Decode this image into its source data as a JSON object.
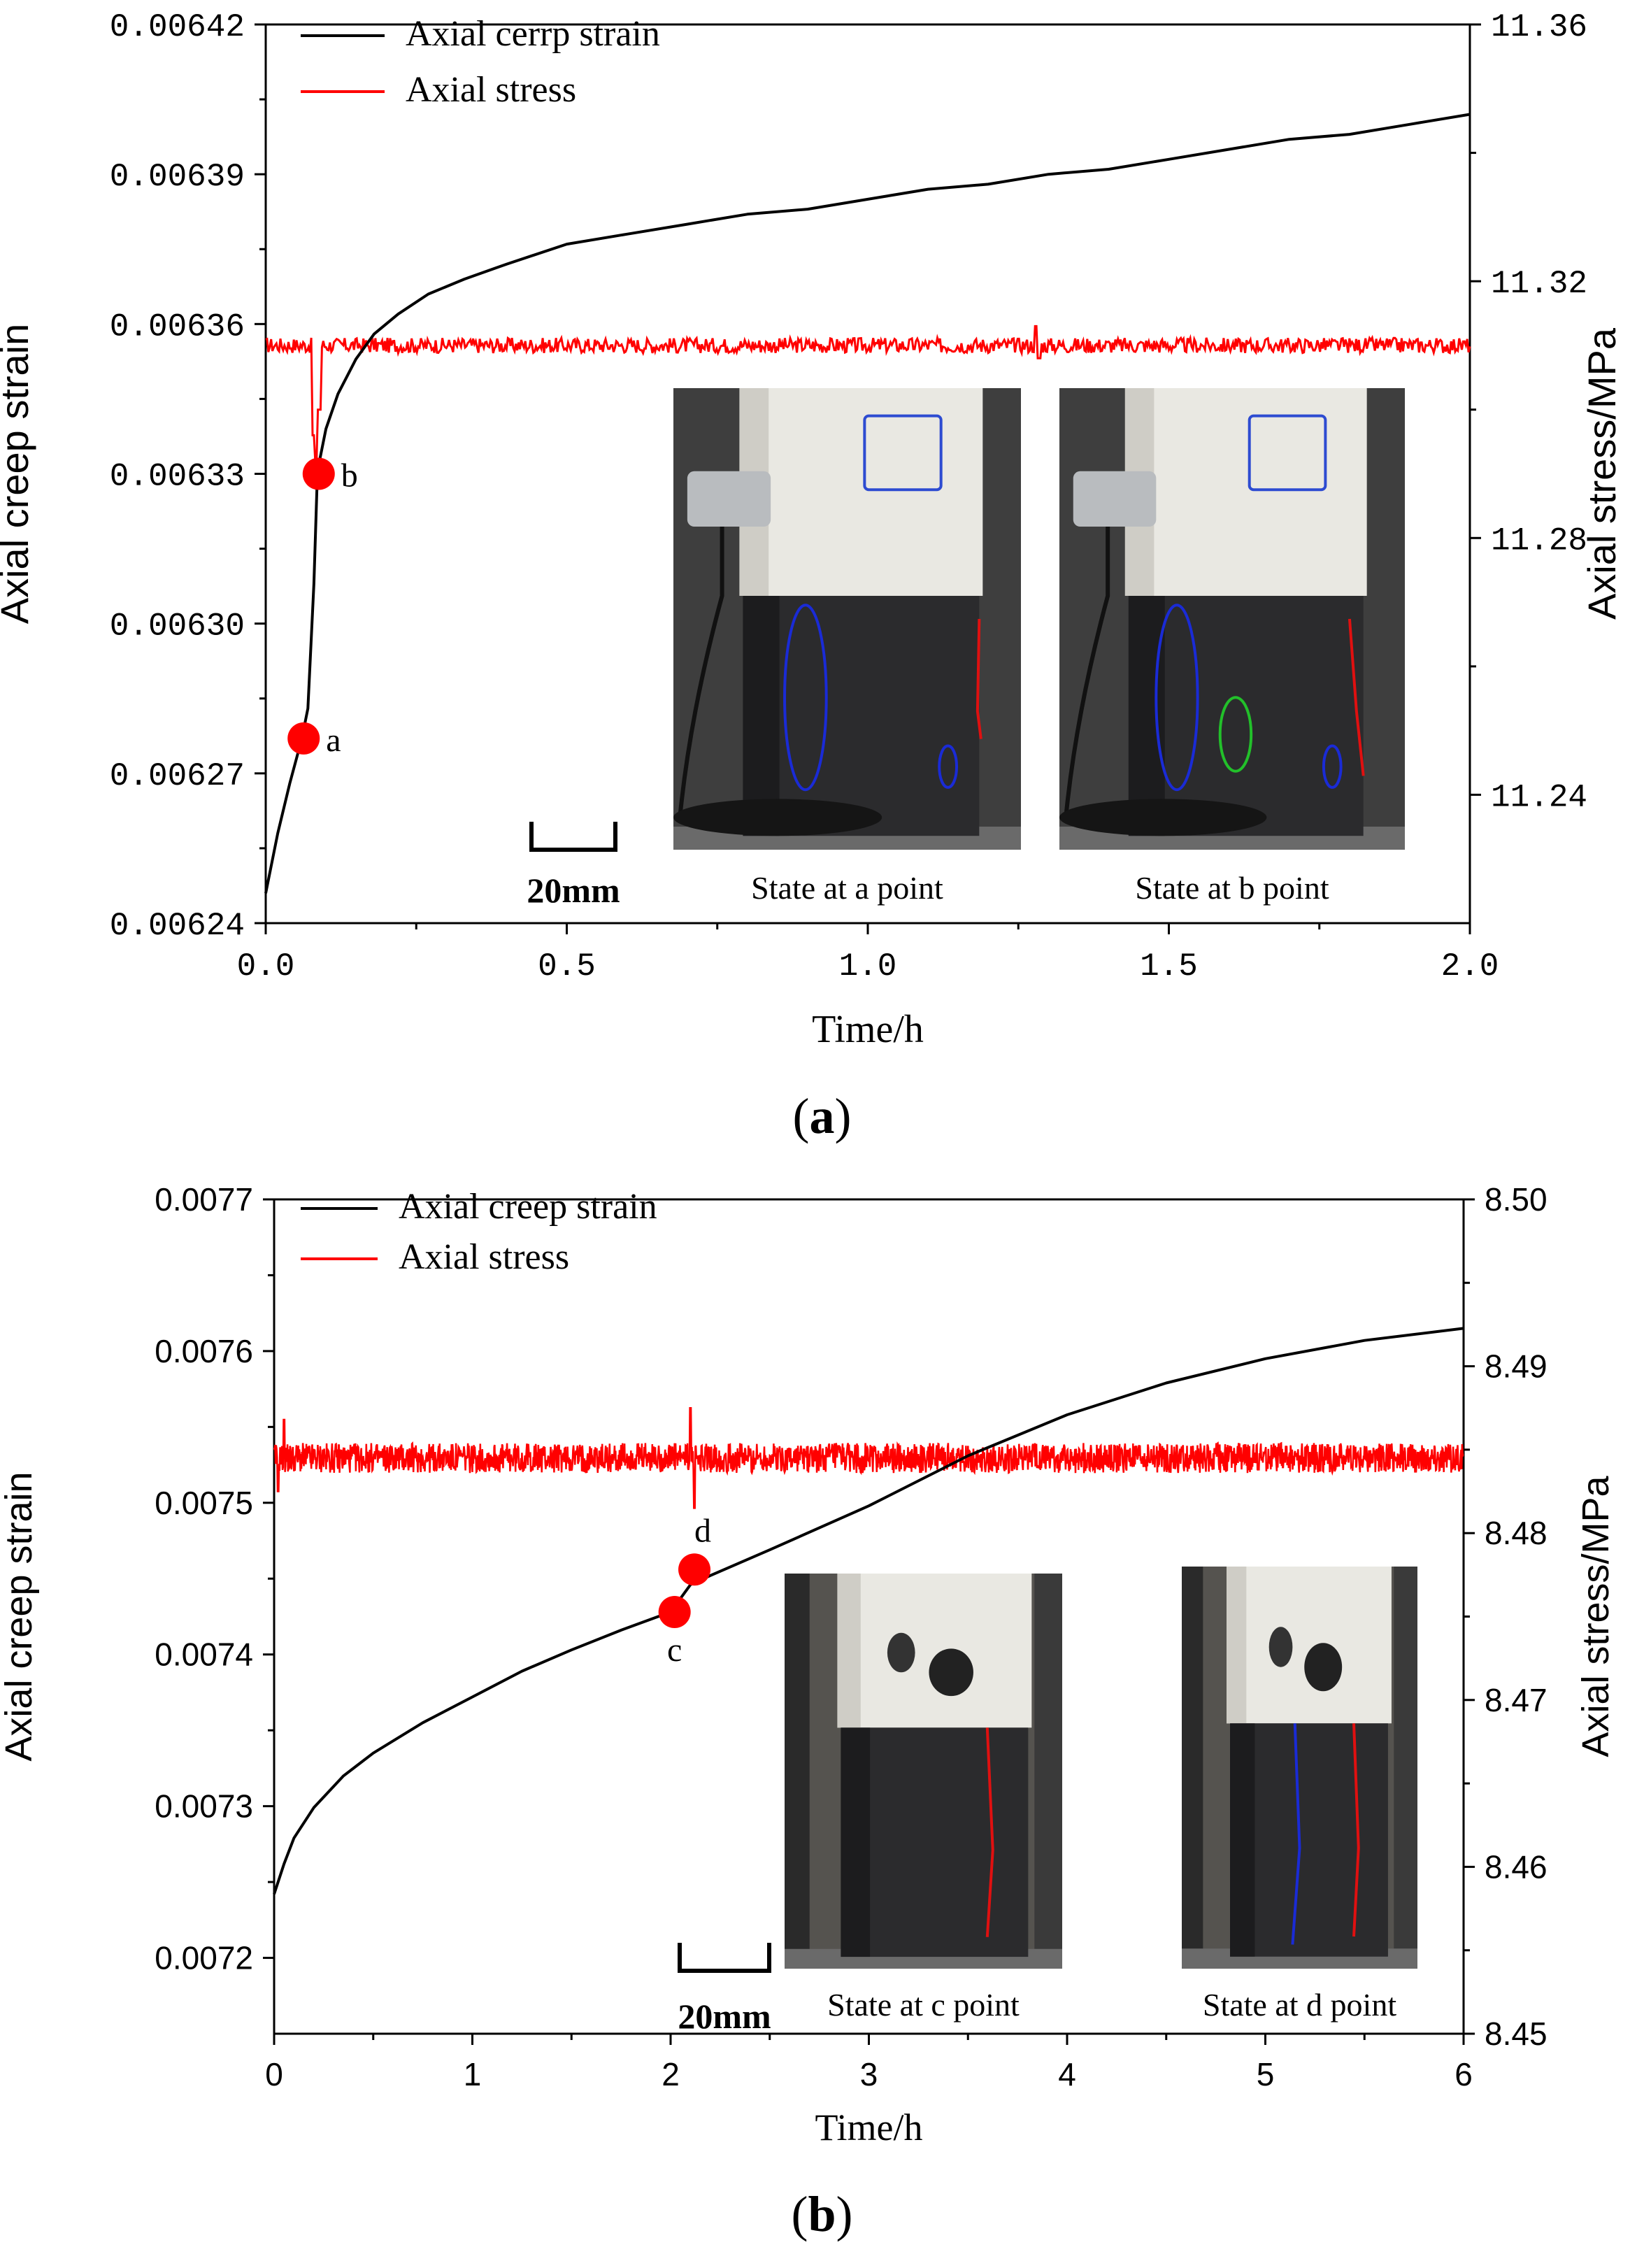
{
  "chart_data": [
    {
      "id": "a",
      "type": "line",
      "caption": "a",
      "xlabel": "Time/h",
      "ylabel": "Axial creep strain",
      "y2label": "Axial stress/MPa",
      "xlim": [
        0.0,
        2.0
      ],
      "ylim": [
        0.00624,
        0.00642
      ],
      "y2lim": [
        11.22,
        11.36
      ],
      "xticks": [
        "0.0",
        "0.5",
        "1.0",
        "1.5",
        "2.0"
      ],
      "xtick_values": [
        0.0,
        0.5,
        1.0,
        1.5,
        2.0
      ],
      "yticks": [
        "0.00624",
        "0.00627",
        "0.00630",
        "0.00633",
        "0.00636",
        "0.00639",
        "0.00642"
      ],
      "ytick_values": [
        0.00624,
        0.00627,
        0.0063,
        0.00633,
        0.00636,
        0.00639,
        0.00642
      ],
      "y2ticks": [
        "11.24",
        "11.28",
        "11.32",
        "11.36"
      ],
      "y2tick_values": [
        11.24,
        11.28,
        11.32,
        11.36
      ],
      "legend_position": "top-left",
      "series": [
        {
          "name": "Axial cerrp strain",
          "color": "#000000",
          "axis": "left",
          "x": [
            0.0,
            0.02,
            0.04,
            0.06,
            0.07,
            0.08,
            0.085,
            0.09,
            0.1,
            0.12,
            0.15,
            0.18,
            0.22,
            0.27,
            0.33,
            0.4,
            0.5,
            0.6,
            0.7,
            0.8,
            0.9,
            1.0,
            1.1,
            1.2,
            1.3,
            1.4,
            1.5,
            1.6,
            1.7,
            1.8,
            1.9,
            2.0
          ],
          "values": [
            0.006246,
            0.006258,
            0.006268,
            0.006277,
            0.006283,
            0.006308,
            0.006327,
            0.006333,
            0.006339,
            0.006346,
            0.006353,
            0.006358,
            0.006362,
            0.006366,
            0.006369,
            0.006372,
            0.006376,
            0.006378,
            0.00638,
            0.006382,
            0.006383,
            0.006385,
            0.006387,
            0.006388,
            0.00639,
            0.006391,
            0.006393,
            0.006395,
            0.006397,
            0.006398,
            0.0064,
            0.006402
          ]
        },
        {
          "name": "Axial stress",
          "color": "#ff0000",
          "axis": "right",
          "base": 11.31,
          "noise": 0.0012,
          "spikes": [
            {
              "x": 0.08,
              "value": 11.296
            },
            {
              "x": 0.085,
              "value": 11.292
            },
            {
              "x": 0.09,
              "value": 11.3
            },
            {
              "x": 1.28,
              "value": 11.313
            },
            {
              "x": 1.285,
              "value": 11.308
            }
          ]
        }
      ],
      "markers": [
        {
          "label": "a",
          "x": 0.063,
          "value": 0.006277
        },
        {
          "label": "b",
          "x": 0.088,
          "value": 0.00633
        }
      ],
      "scale_bar_label": "20mm",
      "photos": [
        {
          "caption": "State at a point"
        },
        {
          "caption": "State at b point"
        }
      ]
    },
    {
      "id": "b",
      "type": "line",
      "caption": "b",
      "xlabel": "Time/h",
      "ylabel": "Axial creep strain",
      "y2label": "Axial stress/MPa",
      "xlim": [
        0,
        6
      ],
      "ylim": [
        0.00715,
        0.0077
      ],
      "y2lim": [
        8.45,
        8.5
      ],
      "xticks": [
        "0",
        "1",
        "2",
        "3",
        "4",
        "5",
        "6"
      ],
      "xtick_values": [
        0,
        1,
        2,
        3,
        4,
        5,
        6
      ],
      "yticks": [
        "0.0072",
        "0.0073",
        "0.0074",
        "0.0075",
        "0.0076",
        "0.0077"
      ],
      "ytick_values": [
        0.0072,
        0.0073,
        0.0074,
        0.0075,
        0.0076,
        0.0077
      ],
      "y2ticks": [
        "8.45",
        "8.46",
        "8.47",
        "8.48",
        "8.49",
        "8.50"
      ],
      "y2tick_values": [
        8.45,
        8.46,
        8.47,
        8.48,
        8.49,
        8.5
      ],
      "legend_position": "top-left",
      "series": [
        {
          "name": "Axial creep strain",
          "color": "#000000",
          "axis": "left",
          "x": [
            0.0,
            0.05,
            0.1,
            0.2,
            0.35,
            0.5,
            0.75,
            1.0,
            1.25,
            1.5,
            1.75,
            2.0,
            2.1,
            2.2,
            2.5,
            3.0,
            3.5,
            4.0,
            4.5,
            5.0,
            5.5,
            6.0
          ],
          "values": [
            0.007242,
            0.007262,
            0.007279,
            0.007299,
            0.00732,
            0.007335,
            0.007355,
            0.007372,
            0.007389,
            0.007403,
            0.007416,
            0.007428,
            0.007446,
            0.007452,
            0.007469,
            0.007498,
            0.007531,
            0.007558,
            0.007579,
            0.007595,
            0.007607,
            0.007615
          ]
        },
        {
          "name": "Axial stress",
          "color": "#ff0000",
          "axis": "right",
          "base": 8.4845,
          "noise": 0.0009,
          "spikes": [
            {
              "x": 0.02,
              "value": 8.4825
            },
            {
              "x": 0.05,
              "value": 8.4868
            },
            {
              "x": 2.1,
              "value": 8.4875
            },
            {
              "x": 2.12,
              "value": 8.4815
            }
          ]
        }
      ],
      "markers": [
        {
          "label": "c",
          "x": 2.02,
          "value": 0.007428
        },
        {
          "label": "d",
          "x": 2.12,
          "value": 0.007456
        }
      ],
      "scale_bar_label": "20mm",
      "photos": [
        {
          "caption": "State at c point"
        },
        {
          "caption": "State at d point"
        }
      ]
    }
  ]
}
